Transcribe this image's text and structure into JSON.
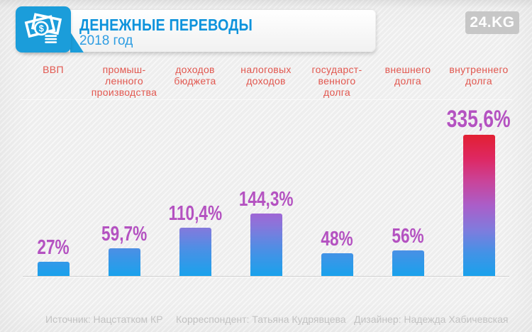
{
  "header": {
    "title": "ДЕНЕЖНЫЕ ПЕРЕВОДЫ",
    "subtitle": "2018 год",
    "brand": "24.KG"
  },
  "chart_data": {
    "type": "bar",
    "title": "ДЕНЕЖНЫЕ ПЕРЕВОДЫ — 2018 год",
    "unit": "%",
    "categories": [
      "ВВП",
      "промыш-\nленного\nпроизводства",
      "доходов\nбюджета",
      "налоговых\nдоходов",
      "государст-\nвенного\nдолга",
      "внешнего\nдолга",
      "внутреннего\nдолга"
    ],
    "series": [
      {
        "name": "денежные переводы",
        "values": [
          27,
          59.7,
          110.4,
          144.3,
          48,
          56,
          335.6
        ],
        "labels": [
          "27%",
          "59,7%",
          "110,4%",
          "144,3%",
          "48%",
          "56%",
          "335,6%"
        ]
      }
    ],
    "ylim": [
      0,
      350
    ],
    "grid": false,
    "legend": "none"
  },
  "footer": {
    "source": "Источник: Нацстатком КР",
    "correspondent": "Корреспондент: Татьяна Кудрявцева",
    "designer": "Дизайнер: Надежда Хабичевская"
  },
  "colors": {
    "accent_blue": "#1b9dda",
    "title_blue": "#0e93dc",
    "category_red": "#e2574f",
    "value_purple": "#b452c1",
    "badge_gray": "#c7c7c7",
    "bar_bottom": "#18a2ec",
    "bar_ramp": [
      [
        0,
        "#18a2ec"
      ],
      [
        38,
        "#4a90e5"
      ],
      [
        70,
        "#8678dc"
      ],
      [
        92,
        "#a263d4"
      ],
      [
        125,
        "#c24da8"
      ],
      [
        155,
        "#dc2d74"
      ],
      [
        180,
        "#e12350"
      ],
      [
        203,
        "#e2202e"
      ]
    ]
  }
}
